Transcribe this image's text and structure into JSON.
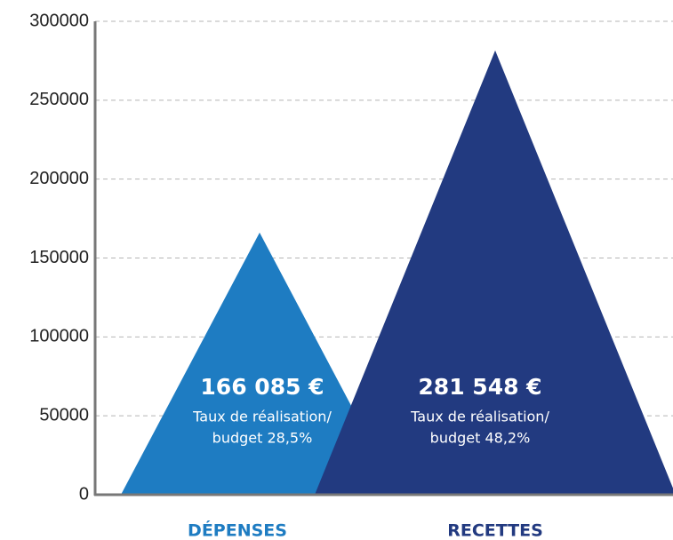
{
  "chart_data": {
    "type": "triangle-bar",
    "categories": [
      "DÉPENSES",
      "RECETTES"
    ],
    "values": [
      166085,
      281548
    ],
    "value_labels": [
      "166 085 €",
      "281 548 €"
    ],
    "sublabels": [
      [
        "Taux de réalisation/",
        "budget 28,5%"
      ],
      [
        "Taux de réalisation/",
        "budget 48,2%"
      ]
    ],
    "colors": [
      "#1e7cc2",
      "#223a80"
    ],
    "ylim": [
      0,
      300000
    ],
    "yticks": [
      0,
      50000,
      100000,
      150000,
      200000,
      250000,
      300000
    ],
    "grid": true
  }
}
